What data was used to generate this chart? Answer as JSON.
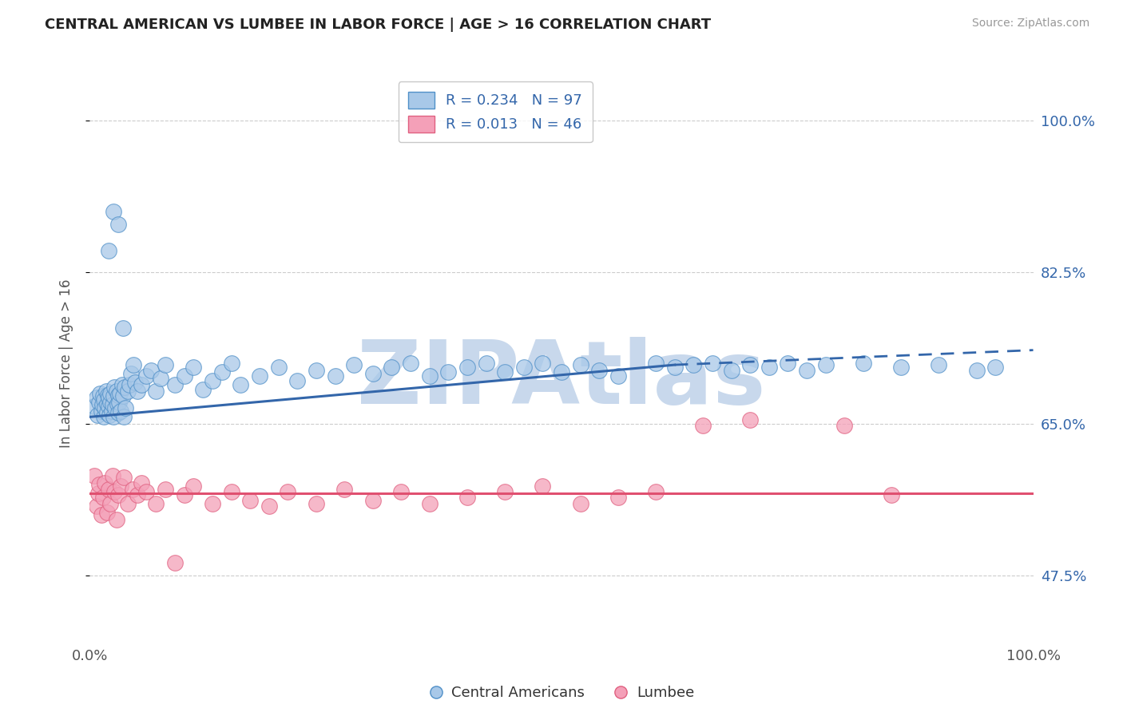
{
  "title": "CENTRAL AMERICAN VS LUMBEE IN LABOR FORCE | AGE > 16 CORRELATION CHART",
  "source": "Source: ZipAtlas.com",
  "ylabel": "In Labor Force | Age > 16",
  "xlim": [
    0.0,
    1.0
  ],
  "ylim": [
    0.4,
    1.04
  ],
  "yticks": [
    0.475,
    0.65,
    0.825,
    1.0
  ],
  "ytick_labels": [
    "47.5%",
    "65.0%",
    "82.5%",
    "100.0%"
  ],
  "blue_color": "#A8C8E8",
  "pink_color": "#F4A0B8",
  "blue_edge_color": "#5090C8",
  "pink_edge_color": "#E06080",
  "blue_line_color": "#3366AA",
  "pink_line_color": "#E05070",
  "blue_line_start_x": 0.0,
  "blue_line_start_y": 0.658,
  "blue_line_solid_end_x": 0.62,
  "blue_line_solid_end_y": 0.718,
  "blue_line_dash_end_x": 1.0,
  "blue_line_dash_end_y": 0.735,
  "pink_line_y": 0.57,
  "watermark": "ZIPAtlas",
  "watermark_color": "#C8D8EC",
  "background_color": "#FFFFFF",
  "grid_color": "#CCCCCC",
  "legend_blue_label": "R = 0.234   N = 97",
  "legend_pink_label": "R = 0.013   N = 46",
  "legend_series1": "Central Americans",
  "legend_series2": "Lumbee",
  "axis_label_color": "#3366AA",
  "tick_label_color": "#555555",
  "blue_x": [
    0.005,
    0.007,
    0.008,
    0.01,
    0.011,
    0.012,
    0.013,
    0.014,
    0.015,
    0.015,
    0.016,
    0.017,
    0.018,
    0.018,
    0.019,
    0.02,
    0.02,
    0.021,
    0.022,
    0.022,
    0.023,
    0.024,
    0.025,
    0.025,
    0.026,
    0.027,
    0.028,
    0.029,
    0.03,
    0.03,
    0.031,
    0.032,
    0.033,
    0.034,
    0.035,
    0.036,
    0.037,
    0.038,
    0.04,
    0.042,
    0.044,
    0.046,
    0.048,
    0.05,
    0.055,
    0.06,
    0.065,
    0.07,
    0.075,
    0.08,
    0.09,
    0.1,
    0.11,
    0.12,
    0.13,
    0.14,
    0.15,
    0.16,
    0.18,
    0.2,
    0.22,
    0.24,
    0.26,
    0.28,
    0.3,
    0.32,
    0.34,
    0.36,
    0.38,
    0.4,
    0.42,
    0.44,
    0.46,
    0.48,
    0.5,
    0.52,
    0.54,
    0.56,
    0.6,
    0.62,
    0.64,
    0.66,
    0.68,
    0.7,
    0.72,
    0.74,
    0.76,
    0.78,
    0.82,
    0.86,
    0.9,
    0.94,
    0.96,
    0.02,
    0.025,
    0.03,
    0.035
  ],
  "blue_y": [
    0.67,
    0.68,
    0.66,
    0.675,
    0.685,
    0.665,
    0.672,
    0.682,
    0.658,
    0.678,
    0.668,
    0.688,
    0.673,
    0.663,
    0.683,
    0.67,
    0.68,
    0.66,
    0.675,
    0.685,
    0.665,
    0.672,
    0.682,
    0.658,
    0.692,
    0.668,
    0.688,
    0.673,
    0.663,
    0.683,
    0.675,
    0.685,
    0.665,
    0.695,
    0.682,
    0.658,
    0.692,
    0.668,
    0.688,
    0.695,
    0.708,
    0.718,
    0.698,
    0.688,
    0.695,
    0.705,
    0.712,
    0.688,
    0.702,
    0.718,
    0.695,
    0.705,
    0.715,
    0.69,
    0.7,
    0.71,
    0.72,
    0.695,
    0.705,
    0.715,
    0.7,
    0.712,
    0.705,
    0.718,
    0.708,
    0.715,
    0.72,
    0.705,
    0.71,
    0.715,
    0.72,
    0.71,
    0.715,
    0.72,
    0.71,
    0.718,
    0.712,
    0.705,
    0.72,
    0.715,
    0.718,
    0.72,
    0.712,
    0.718,
    0.715,
    0.72,
    0.712,
    0.718,
    0.72,
    0.715,
    0.718,
    0.712,
    0.715,
    0.85,
    0.895,
    0.88,
    0.76
  ],
  "pink_x": [
    0.005,
    0.007,
    0.009,
    0.01,
    0.012,
    0.014,
    0.016,
    0.018,
    0.02,
    0.022,
    0.024,
    0.026,
    0.028,
    0.03,
    0.033,
    0.036,
    0.04,
    0.045,
    0.05,
    0.055,
    0.06,
    0.07,
    0.08,
    0.09,
    0.1,
    0.11,
    0.13,
    0.15,
    0.17,
    0.19,
    0.21,
    0.24,
    0.27,
    0.3,
    0.33,
    0.36,
    0.4,
    0.44,
    0.48,
    0.52,
    0.56,
    0.6,
    0.65,
    0.7,
    0.8,
    0.85
  ],
  "pink_y": [
    0.59,
    0.555,
    0.57,
    0.58,
    0.545,
    0.565,
    0.582,
    0.548,
    0.575,
    0.558,
    0.59,
    0.572,
    0.54,
    0.568,
    0.578,
    0.588,
    0.558,
    0.575,
    0.568,
    0.582,
    0.572,
    0.558,
    0.575,
    0.49,
    0.568,
    0.578,
    0.558,
    0.572,
    0.562,
    0.555,
    0.572,
    0.558,
    0.575,
    0.562,
    0.572,
    0.558,
    0.565,
    0.572,
    0.578,
    0.558,
    0.565,
    0.572,
    0.648,
    0.655,
    0.648,
    0.568
  ]
}
